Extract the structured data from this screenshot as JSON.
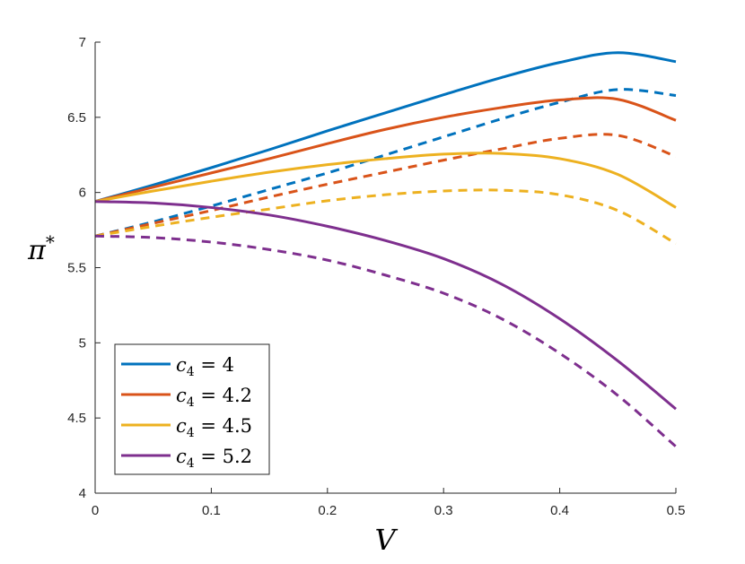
{
  "chart_data": {
    "type": "line",
    "xlabel": "V",
    "ylabel": "π*",
    "xlim": [
      0,
      0.5
    ],
    "ylim": [
      4,
      7
    ],
    "xticks": [
      "0",
      "0.1",
      "0.2",
      "0.3",
      "0.4",
      "0.5"
    ],
    "yticks": [
      "4",
      "4.5",
      "5",
      "5.5",
      "6",
      "6.5",
      "7"
    ],
    "grid": false,
    "legend_position": "bottom-left",
    "x": [
      0,
      0.05,
      0.1,
      0.15,
      0.2,
      0.25,
      0.3,
      0.35,
      0.4,
      0.45,
      0.5
    ],
    "series": [
      {
        "name": "c4 = 4",
        "color": "#0072BD",
        "solid": [
          5.94,
          6.05,
          6.165,
          6.285,
          6.41,
          6.53,
          6.65,
          6.765,
          6.865,
          6.93,
          6.87
        ],
        "dashed": [
          5.71,
          5.805,
          5.91,
          6.02,
          6.13,
          6.25,
          6.37,
          6.49,
          6.6,
          6.685,
          6.645
        ]
      },
      {
        "name": "c4 = 4.2",
        "color": "#D95319",
        "solid": [
          5.94,
          6.035,
          6.13,
          6.225,
          6.325,
          6.42,
          6.5,
          6.565,
          6.615,
          6.62,
          6.48
        ],
        "dashed": [
          5.71,
          5.795,
          5.88,
          5.97,
          6.055,
          6.135,
          6.215,
          6.29,
          6.36,
          6.38,
          6.24
        ]
      },
      {
        "name": "c4 = 4.5",
        "color": "#EDB120",
        "solid": [
          5.94,
          6.01,
          6.075,
          6.135,
          6.185,
          6.225,
          6.255,
          6.26,
          6.225,
          6.12,
          5.9
        ],
        "dashed": [
          5.71,
          5.775,
          5.835,
          5.89,
          5.945,
          5.985,
          6.01,
          6.015,
          5.985,
          5.88,
          5.66
        ]
      },
      {
        "name": "c4 = 5.2",
        "color": "#7E2F8E",
        "solid": [
          5.94,
          5.93,
          5.9,
          5.85,
          5.775,
          5.68,
          5.56,
          5.39,
          5.16,
          4.88,
          4.56
        ],
        "dashed": [
          5.71,
          5.7,
          5.67,
          5.62,
          5.55,
          5.45,
          5.33,
          5.16,
          4.93,
          4.65,
          4.31
        ]
      }
    ],
    "legend": [
      {
        "prefix": "c",
        "sub": "4",
        "rest": " = 4"
      },
      {
        "prefix": "c",
        "sub": "4",
        "rest": " = 4.2"
      },
      {
        "prefix": "c",
        "sub": "4",
        "rest": " = 4.5"
      },
      {
        "prefix": "c",
        "sub": "4",
        "rest": " = 5.2"
      }
    ]
  }
}
